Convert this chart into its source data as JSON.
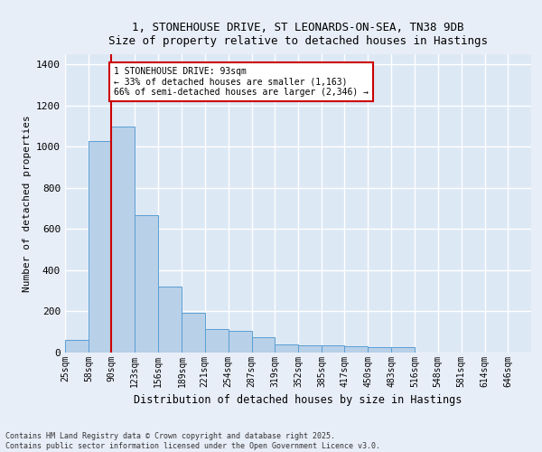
{
  "title_line1": "1, STONEHOUSE DRIVE, ST LEONARDS-ON-SEA, TN38 9DB",
  "title_line2": "Size of property relative to detached houses in Hastings",
  "xlabel": "Distribution of detached houses by size in Hastings",
  "ylabel": "Number of detached properties",
  "bar_color": "#b8d0e8",
  "bar_edge_color": "#5a9fd4",
  "bg_color": "#dde8f5",
  "fig_bg_color": "#e8eef8",
  "grid_color": "#ffffff",
  "property_line_x": 90,
  "annotation_text": "1 STONEHOUSE DRIVE: 93sqm\n← 33% of detached houses are smaller (1,163)\n66% of semi-detached houses are larger (2,346) →",
  "annotation_box_color": "#ffffff",
  "annotation_box_edge": "#cc0000",
  "footnote": "Contains HM Land Registry data © Crown copyright and database right 2025.\nContains public sector information licensed under the Open Government Licence v3.0.",
  "bin_edges": [
    25,
    58,
    90,
    123,
    156,
    189,
    221,
    254,
    287,
    319,
    352,
    385,
    417,
    450,
    483,
    516,
    548,
    581,
    614,
    646,
    679
  ],
  "bar_heights": [
    60,
    1030,
    1100,
    670,
    320,
    195,
    115,
    105,
    75,
    38,
    35,
    35,
    30,
    28,
    28,
    0,
    0,
    0,
    0,
    0
  ],
  "ylim": [
    0,
    1450
  ],
  "yticks": [
    0,
    200,
    400,
    600,
    800,
    1000,
    1200,
    1400
  ]
}
